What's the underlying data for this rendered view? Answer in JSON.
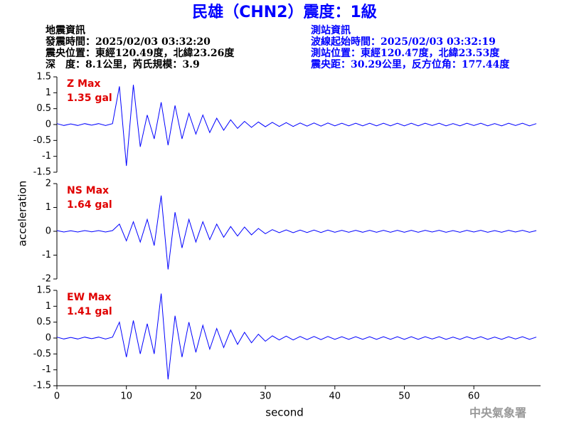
{
  "header": {
    "title": "民雄（CHN2）震度：1級",
    "quake": [
      "地震資訊",
      "發震時間：2025/02/03 03:32:20",
      "震央位置：東經120.49度，北緯23.26度",
      "深　度：8.1公里，芮氏規模：3.9"
    ],
    "station": [
      "測站資訊",
      "波線起始時間：2025/02/03 03:32:19",
      "測站位置：東經120.47度，北緯23.53度",
      "震央距：30.29公里，反方位角：177.44度"
    ],
    "agency": "中央氣象署"
  },
  "chart_data": [
    {
      "type": "line",
      "annotations": [
        "Z Max",
        "1.35 gal"
      ],
      "color": "#0000ff",
      "x": [
        0,
        1,
        2,
        3,
        4,
        5,
        6,
        7,
        8,
        9,
        10,
        11,
        12,
        13,
        14,
        15,
        16,
        17,
        18,
        19,
        20,
        21,
        22,
        23,
        24,
        25,
        26,
        27,
        28,
        29,
        30,
        31,
        32,
        33,
        34,
        35,
        36,
        37,
        38,
        39,
        40,
        41,
        42,
        43,
        44,
        45,
        46,
        47,
        48,
        49,
        50,
        51,
        52,
        53,
        54,
        55,
        56,
        57,
        58,
        59,
        60,
        61,
        62,
        63,
        64,
        65,
        66,
        67,
        68,
        69
      ],
      "values": [
        0.03,
        -0.03,
        0.02,
        -0.03,
        0.03,
        -0.02,
        0.03,
        -0.03,
        0.03,
        1.2,
        -1.3,
        1.25,
        -0.7,
        0.3,
        -0.45,
        0.7,
        -0.65,
        0.6,
        -0.45,
        0.35,
        -0.3,
        0.3,
        -0.25,
        0.2,
        -0.18,
        0.15,
        -0.12,
        0.1,
        -0.09,
        0.08,
        -0.07,
        0.07,
        -0.06,
        0.06,
        -0.06,
        0.05,
        -0.05,
        0.05,
        -0.05,
        0.05,
        -0.04,
        0.04,
        -0.04,
        0.04,
        -0.04,
        0.04,
        -0.04,
        0.04,
        -0.04,
        0.04,
        -0.04,
        0.04,
        -0.04,
        0.04,
        -0.03,
        0.04,
        -0.04,
        0.03,
        -0.04,
        0.04,
        -0.03,
        0.04,
        -0.04,
        0.03,
        -0.04,
        0.04,
        -0.03,
        0.04,
        -0.04,
        0.03
      ],
      "xlim": [
        0,
        69.6
      ],
      "ylim": [
        -1.5,
        1.5
      ],
      "yticks": [
        -1.5,
        -1,
        -0.5,
        0,
        0.5,
        1,
        1.5
      ]
    },
    {
      "type": "line",
      "annotations": [
        "NS Max",
        "1.64 gal"
      ],
      "color": "#0000ff",
      "ylabel": "acceleration",
      "x": [
        0,
        1,
        2,
        3,
        4,
        5,
        6,
        7,
        8,
        9,
        10,
        11,
        12,
        13,
        14,
        15,
        16,
        17,
        18,
        19,
        20,
        21,
        22,
        23,
        24,
        25,
        26,
        27,
        28,
        29,
        30,
        31,
        32,
        33,
        34,
        35,
        36,
        37,
        38,
        39,
        40,
        41,
        42,
        43,
        44,
        45,
        46,
        47,
        48,
        49,
        50,
        51,
        52,
        53,
        54,
        55,
        56,
        57,
        58,
        59,
        60,
        61,
        62,
        63,
        64,
        65,
        66,
        67,
        68,
        69
      ],
      "values": [
        0.03,
        -0.03,
        0.02,
        -0.03,
        0.03,
        -0.02,
        0.03,
        -0.03,
        0.03,
        0.3,
        -0.4,
        0.4,
        -0.45,
        0.5,
        -0.6,
        1.5,
        -1.6,
        0.8,
        -0.7,
        0.5,
        -0.45,
        0.4,
        -0.35,
        0.3,
        -0.25,
        0.2,
        -0.2,
        0.18,
        -0.15,
        0.12,
        -0.1,
        0.07,
        -0.06,
        0.06,
        -0.06,
        0.05,
        -0.05,
        0.05,
        -0.05,
        0.05,
        -0.04,
        0.04,
        -0.04,
        0.04,
        -0.04,
        0.04,
        -0.04,
        0.04,
        -0.04,
        0.04,
        -0.04,
        0.04,
        -0.04,
        0.04,
        -0.03,
        0.04,
        -0.04,
        0.03,
        -0.04,
        0.04,
        -0.03,
        0.04,
        -0.04,
        0.03,
        -0.04,
        0.04,
        -0.03,
        0.04,
        -0.04,
        0.03
      ],
      "xlim": [
        0,
        69.6
      ],
      "ylim": [
        -2,
        2
      ],
      "yticks": [
        -2,
        -1,
        0,
        1,
        2
      ]
    },
    {
      "type": "line",
      "annotations": [
        "EW Max",
        "1.41 gal"
      ],
      "color": "#0000ff",
      "xlabel": "second",
      "x": [
        0,
        1,
        2,
        3,
        4,
        5,
        6,
        7,
        8,
        9,
        10,
        11,
        12,
        13,
        14,
        15,
        16,
        17,
        18,
        19,
        20,
        21,
        22,
        23,
        24,
        25,
        26,
        27,
        28,
        29,
        30,
        31,
        32,
        33,
        34,
        35,
        36,
        37,
        38,
        39,
        40,
        41,
        42,
        43,
        44,
        45,
        46,
        47,
        48,
        49,
        50,
        51,
        52,
        53,
        54,
        55,
        56,
        57,
        58,
        59,
        60,
        61,
        62,
        63,
        64,
        65,
        66,
        67,
        68,
        69
      ],
      "values": [
        0.03,
        -0.03,
        0.02,
        -0.03,
        0.03,
        -0.02,
        0.03,
        -0.03,
        0.03,
        0.5,
        -0.6,
        0.55,
        -0.5,
        0.45,
        -0.5,
        1.4,
        -1.3,
        0.7,
        -0.6,
        0.5,
        -0.45,
        0.4,
        -0.35,
        0.3,
        -0.3,
        0.25,
        -0.2,
        0.18,
        -0.15,
        0.12,
        -0.1,
        0.07,
        -0.06,
        0.06,
        -0.06,
        0.05,
        -0.05,
        0.05,
        -0.05,
        0.05,
        -0.04,
        0.04,
        -0.04,
        0.04,
        -0.04,
        0.04,
        -0.04,
        0.04,
        -0.04,
        0.04,
        -0.04,
        0.04,
        -0.04,
        0.04,
        -0.03,
        0.04,
        -0.04,
        0.03,
        -0.04,
        0.04,
        -0.03,
        0.04,
        -0.04,
        0.03,
        -0.04,
        0.04,
        -0.03,
        0.04,
        -0.04,
        0.03
      ],
      "xlim": [
        0,
        69.6
      ],
      "ylim": [
        -1.5,
        1.5
      ],
      "yticks": [
        -1.5,
        -1,
        -0.5,
        0,
        0.5,
        1,
        1.5
      ],
      "xticks": [
        0,
        10,
        20,
        30,
        40,
        50,
        60
      ]
    }
  ]
}
